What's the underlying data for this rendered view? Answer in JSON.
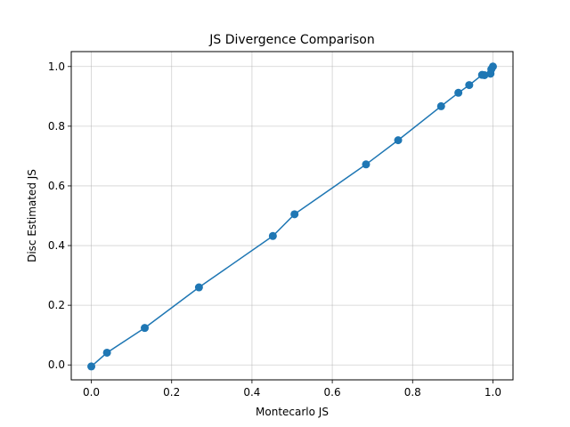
{
  "chart_data": {
    "type": "line",
    "title": "JS Divergence Comparison",
    "xlabel": "Montecarlo JS",
    "ylabel": "Disc Estimated JS",
    "xlim": [
      -0.05,
      1.05
    ],
    "ylim": [
      -0.05,
      1.05
    ],
    "xticks": [
      "0.0",
      "0.2",
      "0.4",
      "0.6",
      "0.8",
      "1.0"
    ],
    "yticks": [
      "0.0",
      "0.2",
      "0.4",
      "0.6",
      "0.8",
      "1.0"
    ],
    "grid": true,
    "markers": true,
    "series": [
      {
        "color": "#1f77b4",
        "x": [
          0.0,
          0.039,
          0.133,
          0.268,
          0.452,
          0.506,
          0.684,
          0.764,
          0.871,
          0.914,
          0.941,
          0.973,
          0.979,
          0.994,
          0.996,
          1.0
        ],
        "y": [
          -0.005,
          0.041,
          0.124,
          0.26,
          0.432,
          0.505,
          0.672,
          0.753,
          0.867,
          0.912,
          0.938,
          0.972,
          0.971,
          0.976,
          0.991,
          1.0
        ]
      }
    ]
  }
}
